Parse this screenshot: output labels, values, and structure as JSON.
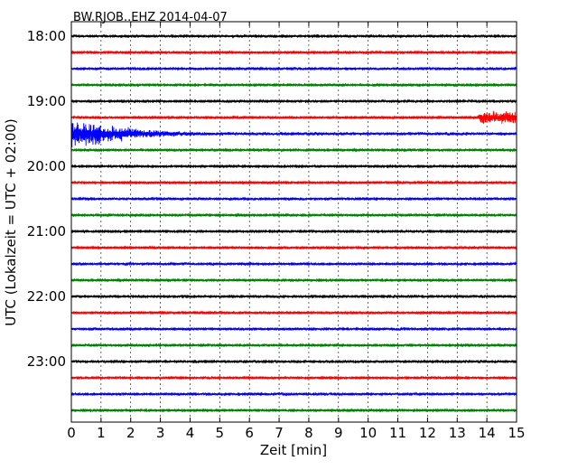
{
  "chart_data": {
    "type": "line",
    "title": "BW.RJOB..EHZ 2014-04-07",
    "xlabel": "Zeit  [min]",
    "ylabel": "UTC (Lokalzeit = UTC + 02:00)",
    "xlim": [
      0,
      15
    ],
    "x_ticks": [
      "0",
      "1",
      "2",
      "3",
      "4",
      "5",
      "6",
      "7",
      "8",
      "9",
      "10",
      "11",
      "12",
      "13",
      "14",
      "15"
    ],
    "y_ticks": [
      "18:00",
      "19:00",
      "20:00",
      "21:00",
      "22:00",
      "23:00"
    ],
    "grid": true,
    "colors": [
      "#000000",
      "#ff0000",
      "#0000ff",
      "#008000"
    ],
    "series": [
      {
        "start": "18:00",
        "color": "#000000",
        "amplitude": 1.2,
        "events": []
      },
      {
        "start": "18:15",
        "color": "#ff0000",
        "amplitude": 1.0,
        "events": []
      },
      {
        "start": "18:30",
        "color": "#0000ff",
        "amplitude": 1.3,
        "events": []
      },
      {
        "start": "18:45",
        "color": "#008000",
        "amplitude": 1.0,
        "events": []
      },
      {
        "start": "19:00",
        "color": "#000000",
        "amplitude": 1.1,
        "events": []
      },
      {
        "start": "19:15",
        "color": "#ff0000",
        "amplitude": 1.0,
        "events": [
          {
            "start_min": 13.7,
            "end_min": 15.0,
            "amplitude": 7
          }
        ]
      },
      {
        "start": "19:30",
        "color": "#0000ff",
        "amplitude": 1.5,
        "events": [
          {
            "start_min": 0.0,
            "end_min": 6.0,
            "amplitude": 18,
            "decay": true
          }
        ]
      },
      {
        "start": "19:45",
        "color": "#008000",
        "amplitude": 1.0,
        "events": []
      },
      {
        "start": "20:00",
        "color": "#000000",
        "amplitude": 1.1,
        "events": []
      },
      {
        "start": "20:15",
        "color": "#ff0000",
        "amplitude": 1.0,
        "events": []
      },
      {
        "start": "20:30",
        "color": "#0000ff",
        "amplitude": 1.2,
        "events": []
      },
      {
        "start": "20:45",
        "color": "#008000",
        "amplitude": 1.0,
        "events": []
      },
      {
        "start": "21:00",
        "color": "#000000",
        "amplitude": 1.1,
        "events": []
      },
      {
        "start": "21:15",
        "color": "#ff0000",
        "amplitude": 1.0,
        "events": []
      },
      {
        "start": "21:30",
        "color": "#0000ff",
        "amplitude": 1.3,
        "events": []
      },
      {
        "start": "21:45",
        "color": "#008000",
        "amplitude": 1.0,
        "events": []
      },
      {
        "start": "22:00",
        "color": "#000000",
        "amplitude": 1.2,
        "events": []
      },
      {
        "start": "22:15",
        "color": "#ff0000",
        "amplitude": 1.0,
        "events": []
      },
      {
        "start": "22:30",
        "color": "#0000ff",
        "amplitude": 1.3,
        "events": []
      },
      {
        "start": "22:45",
        "color": "#008000",
        "amplitude": 1.0,
        "events": []
      },
      {
        "start": "23:00",
        "color": "#000000",
        "amplitude": 1.2,
        "events": []
      },
      {
        "start": "23:15",
        "color": "#ff0000",
        "amplitude": 1.1,
        "events": []
      },
      {
        "start": "23:30",
        "color": "#0000ff",
        "amplitude": 1.3,
        "events": []
      },
      {
        "start": "23:45",
        "color": "#008000",
        "amplitude": 1.0,
        "events": []
      }
    ]
  }
}
